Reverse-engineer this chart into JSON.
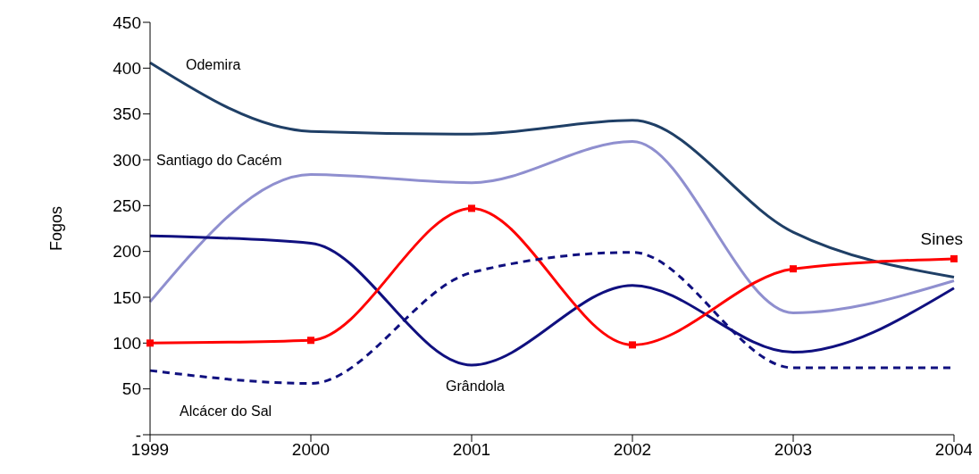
{
  "chart_data": {
    "type": "line",
    "ylabel": "Fogos",
    "categories": [
      "1999",
      "2000",
      "2001",
      "2002",
      "2003",
      "2004"
    ],
    "ylim": [
      0,
      450
    ],
    "yticks": [
      {
        "value": 0,
        "label": "-"
      },
      50,
      100,
      150,
      200,
      250,
      300,
      350,
      400,
      450
    ],
    "grid": false,
    "legend": false,
    "series": [
      {
        "name": "Odemira",
        "color": "#1f3f66",
        "values": [
          406,
          331,
          328,
          343,
          221,
          172
        ]
      },
      {
        "name": "Santiago do Cacém",
        "color": "#8f8fcf",
        "values": [
          145,
          284,
          275,
          320,
          133,
          168
        ]
      },
      {
        "name": "Grândola",
        "color": "#10107f",
        "values": [
          217,
          209,
          76,
          163,
          90,
          160
        ]
      },
      {
        "name": "Sines",
        "color": "#ff0000",
        "marker": "square",
        "values": [
          100,
          103,
          247,
          98,
          181,
          192
        ]
      },
      {
        "name": "Alcácer do Sal",
        "color": "#10107f",
        "line_style": "dashed",
        "values": [
          70,
          56,
          177,
          199,
          73,
          73
        ]
      }
    ]
  }
}
